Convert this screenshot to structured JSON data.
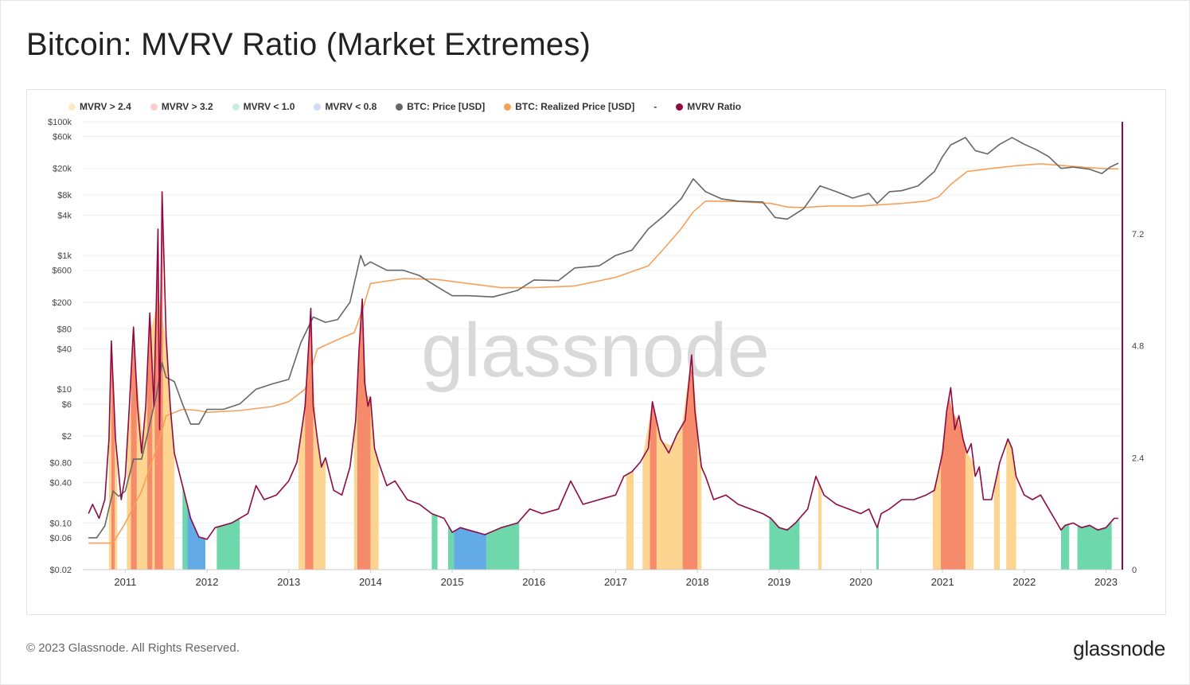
{
  "title": "Bitcoin: MVRV Ratio (Market Extremes)",
  "footer": {
    "copyright": "© 2023 Glassnode. All Rights Reserved.",
    "logo": "glassnode"
  },
  "watermark": "glassnode",
  "legend": {
    "items": [
      {
        "label": "MVRV > 2.4",
        "color": "#fde9c4"
      },
      {
        "label": "MVRV > 3.2",
        "color": "#f9cfc8"
      },
      {
        "label": "MVRV < 1.0",
        "color": "#c8eee2"
      },
      {
        "label": "MVRV < 0.8",
        "color": "#cbdcf7"
      },
      {
        "label": "BTC: Price [USD]",
        "color": "#666666"
      },
      {
        "label": "BTC: Realized Price [USD]",
        "color": "#f7a05a"
      }
    ],
    "separator": "-",
    "last": {
      "label": "MVRV Ratio",
      "color": "#8e0a45"
    }
  },
  "colors": {
    "mvrv": "#8e0a45",
    "price": "#666666",
    "realized": "#f7a05a",
    "zone_gt24": "#fdd38a",
    "zone_gt32": "#f5876a",
    "zone_lt10": "#66d6a8",
    "zone_lt08": "#5aa7e6",
    "watermark": "#d9d9d9"
  },
  "chart_data": {
    "type": "line",
    "title": "Bitcoin: MVRV Ratio (Market Extremes)",
    "x_ticks": [
      "2011",
      "2012",
      "2013",
      "2014",
      "2015",
      "2016",
      "2017",
      "2018",
      "2019",
      "2020",
      "2021",
      "2022",
      "2023"
    ],
    "x_range": [
      2010.48,
      2023.2
    ],
    "left_axis": {
      "scale": "log",
      "range": [
        0.02,
        100000
      ],
      "ticks": [
        {
          "v": 100000,
          "label": "$100k"
        },
        {
          "v": 60000,
          "label": "$60k"
        },
        {
          "v": 20000,
          "label": "$20k"
        },
        {
          "v": 8000,
          "label": "$8k"
        },
        {
          "v": 4000,
          "label": "$4k"
        },
        {
          "v": 1000,
          "label": "$1k"
        },
        {
          "v": 600,
          "label": "$600"
        },
        {
          "v": 200,
          "label": "$200"
        },
        {
          "v": 80,
          "label": "$80"
        },
        {
          "v": 40,
          "label": "$40"
        },
        {
          "v": 10,
          "label": "$10"
        },
        {
          "v": 6,
          "label": "$6"
        },
        {
          "v": 2,
          "label": "$2"
        },
        {
          "v": 0.8,
          "label": "$0.80"
        },
        {
          "v": 0.4,
          "label": "$0.40"
        },
        {
          "v": 0.1,
          "label": "$0.10"
        },
        {
          "v": 0.06,
          "label": "$0.06"
        },
        {
          "v": 0.02,
          "label": "$0.02"
        }
      ]
    },
    "right_axis": {
      "scale": "linear",
      "range": [
        0,
        9.6
      ],
      "ticks": [
        {
          "v": 0,
          "label": "0"
        },
        {
          "v": 2.4,
          "label": "2.4"
        },
        {
          "v": 4.8,
          "label": "4.8"
        },
        {
          "v": 7.2,
          "label": "7.2"
        }
      ]
    },
    "series": [
      {
        "name": "BTC: Price [USD]",
        "axis": "left",
        "x": [
          2010.55,
          2010.65,
          2010.75,
          2010.85,
          2010.92,
          2011.0,
          2011.1,
          2011.2,
          2011.3,
          2011.38,
          2011.45,
          2011.5,
          2011.6,
          2011.7,
          2011.8,
          2011.9,
          2012.0,
          2012.2,
          2012.4,
          2012.6,
          2012.8,
          2013.0,
          2013.15,
          2013.3,
          2013.45,
          2013.6,
          2013.75,
          2013.88,
          2013.93,
          2014.0,
          2014.2,
          2014.4,
          2014.6,
          2014.8,
          2015.0,
          2015.2,
          2015.5,
          2015.8,
          2016.0,
          2016.3,
          2016.5,
          2016.8,
          2017.0,
          2017.2,
          2017.4,
          2017.6,
          2017.8,
          2017.95,
          2018.1,
          2018.3,
          2018.5,
          2018.8,
          2018.95,
          2019.1,
          2019.3,
          2019.5,
          2019.7,
          2019.9,
          2020.1,
          2020.2,
          2020.35,
          2020.5,
          2020.7,
          2020.9,
          2021.0,
          2021.1,
          2021.28,
          2021.4,
          2021.55,
          2021.7,
          2021.85,
          2022.0,
          2022.15,
          2022.3,
          2022.45,
          2022.6,
          2022.8,
          2022.95,
          2023.05,
          2023.15
        ],
        "values": [
          0.06,
          0.06,
          0.09,
          0.3,
          0.25,
          0.3,
          0.9,
          0.9,
          3,
          8,
          25,
          15,
          13,
          6,
          3,
          3,
          5,
          5,
          6,
          10,
          12,
          14,
          50,
          120,
          100,
          110,
          200,
          1000,
          700,
          800,
          600,
          600,
          500,
          350,
          250,
          250,
          240,
          300,
          430,
          420,
          650,
          700,
          1000,
          1200,
          2500,
          4000,
          7000,
          14000,
          9000,
          7000,
          6500,
          6300,
          3700,
          3500,
          5000,
          11000,
          9000,
          7200,
          8500,
          6000,
          9000,
          9300,
          11000,
          18000,
          30000,
          45000,
          58000,
          37000,
          33000,
          46000,
          58000,
          46000,
          38000,
          30000,
          20000,
          21000,
          19500,
          16800,
          21000,
          24000
        ]
      },
      {
        "name": "BTC: Realized Price [USD]",
        "axis": "left",
        "x": [
          2010.55,
          2010.85,
          2011.0,
          2011.2,
          2011.4,
          2011.5,
          2011.7,
          2011.9,
          2012.0,
          2012.4,
          2012.8,
          2013.0,
          2013.2,
          2013.35,
          2013.6,
          2013.8,
          2013.9,
          2014.0,
          2014.4,
          2014.8,
          2015.2,
          2015.6,
          2016.0,
          2016.5,
          2017.0,
          2017.4,
          2017.6,
          2017.8,
          2017.95,
          2018.1,
          2018.5,
          2018.9,
          2019.1,
          2019.3,
          2019.6,
          2020.0,
          2020.5,
          2020.8,
          2020.95,
          2021.1,
          2021.3,
          2021.6,
          2021.9,
          2022.2,
          2022.5,
          2022.8,
          2023.0,
          2023.15
        ],
        "values": [
          0.05,
          0.05,
          0.1,
          0.3,
          1.5,
          4,
          5,
          4.8,
          4.5,
          4.8,
          5.5,
          6.5,
          10,
          40,
          55,
          70,
          150,
          380,
          450,
          440,
          380,
          330,
          330,
          350,
          470,
          700,
          1300,
          2500,
          4500,
          6500,
          6400,
          6000,
          5300,
          5200,
          5500,
          5500,
          6000,
          6500,
          7500,
          11500,
          18000,
          20000,
          22000,
          23500,
          22000,
          20500,
          19800,
          19700
        ]
      },
      {
        "name": "MVRV Ratio",
        "axis": "right",
        "x": [
          2010.55,
          2010.6,
          2010.68,
          2010.75,
          2010.8,
          2010.83,
          2010.88,
          2010.95,
          2011.0,
          2011.05,
          2011.1,
          2011.15,
          2011.2,
          2011.25,
          2011.3,
          2011.35,
          2011.4,
          2011.42,
          2011.45,
          2011.5,
          2011.55,
          2011.6,
          2011.7,
          2011.8,
          2011.9,
          2012.0,
          2012.1,
          2012.3,
          2012.5,
          2012.6,
          2012.7,
          2012.85,
          2013.0,
          2013.1,
          2013.2,
          2013.27,
          2013.3,
          2013.35,
          2013.4,
          2013.45,
          2013.55,
          2013.65,
          2013.75,
          2013.82,
          2013.86,
          2013.9,
          2013.93,
          2013.97,
          2014.0,
          2014.05,
          2014.1,
          2014.2,
          2014.3,
          2014.45,
          2014.6,
          2014.75,
          2014.9,
          2015.0,
          2015.1,
          2015.2,
          2015.4,
          2015.6,
          2015.8,
          2015.95,
          2016.1,
          2016.3,
          2016.45,
          2016.6,
          2016.8,
          2017.0,
          2017.1,
          2017.2,
          2017.3,
          2017.4,
          2017.45,
          2017.55,
          2017.65,
          2017.75,
          2017.85,
          2017.93,
          2017.97,
          2018.05,
          2018.1,
          2018.2,
          2018.35,
          2018.5,
          2018.65,
          2018.8,
          2018.9,
          2019.0,
          2019.1,
          2019.2,
          2019.35,
          2019.45,
          2019.55,
          2019.7,
          2019.85,
          2020.0,
          2020.1,
          2020.15,
          2020.2,
          2020.25,
          2020.35,
          2020.5,
          2020.65,
          2020.8,
          2020.9,
          2021.0,
          2021.05,
          2021.1,
          2021.15,
          2021.2,
          2021.25,
          2021.3,
          2021.35,
          2021.4,
          2021.45,
          2021.5,
          2021.6,
          2021.7,
          2021.8,
          2021.85,
          2021.9,
          2022.0,
          2022.1,
          2022.2,
          2022.3,
          2022.4,
          2022.45,
          2022.5,
          2022.6,
          2022.7,
          2022.8,
          2022.9,
          2023.0,
          2023.1,
          2023.15
        ],
        "values": [
          1.2,
          1.4,
          1.1,
          1.5,
          2.8,
          4.9,
          2.8,
          1.5,
          2.0,
          3.5,
          5.2,
          3.5,
          2.5,
          3.5,
          5.5,
          3.5,
          7.3,
          3.0,
          8.1,
          5.0,
          3.5,
          2.5,
          1.8,
          1.1,
          0.7,
          0.65,
          0.9,
          1.0,
          1.2,
          1.8,
          1.5,
          1.6,
          1.9,
          2.3,
          3.5,
          5.6,
          3.5,
          2.8,
          2.2,
          2.4,
          1.7,
          1.6,
          2.2,
          3.2,
          4.7,
          5.8,
          4.0,
          3.5,
          3.7,
          2.6,
          2.3,
          1.8,
          1.9,
          1.5,
          1.4,
          1.2,
          1.1,
          0.8,
          0.9,
          0.85,
          0.75,
          0.9,
          1.0,
          1.3,
          1.2,
          1.3,
          1.9,
          1.4,
          1.5,
          1.6,
          2.0,
          2.1,
          2.3,
          2.6,
          3.6,
          2.8,
          2.5,
          2.9,
          3.2,
          4.6,
          3.4,
          2.2,
          2.0,
          1.5,
          1.6,
          1.4,
          1.3,
          1.2,
          1.1,
          0.9,
          0.85,
          1.0,
          1.3,
          2.0,
          1.6,
          1.4,
          1.3,
          1.2,
          1.3,
          1.1,
          0.9,
          1.2,
          1.3,
          1.5,
          1.5,
          1.6,
          1.7,
          2.5,
          3.4,
          3.9,
          3.0,
          3.3,
          2.8,
          2.5,
          2.7,
          2.0,
          2.2,
          1.5,
          1.5,
          2.3,
          2.8,
          2.6,
          2.0,
          1.6,
          1.5,
          1.6,
          1.3,
          1.0,
          0.85,
          0.95,
          1.0,
          0.9,
          0.95,
          0.85,
          0.9,
          1.1,
          1.1
        ]
      }
    ],
    "zones": [
      {
        "type": "gt24",
        "from": 2010.8,
        "to": 2010.9
      },
      {
        "type": "gt32",
        "from": 2010.83,
        "to": 2010.87
      },
      {
        "type": "gt24",
        "from": 2011.02,
        "to": 2011.6
      },
      {
        "type": "gt32",
        "from": 2011.07,
        "to": 2011.14
      },
      {
        "type": "gt32",
        "from": 2011.27,
        "to": 2011.33
      },
      {
        "type": "gt32",
        "from": 2011.36,
        "to": 2011.46
      },
      {
        "type": "lt10",
        "from": 2011.7,
        "to": 2011.76
      },
      {
        "type": "lt08",
        "from": 2011.76,
        "to": 2011.98
      },
      {
        "type": "lt10",
        "from": 2012.12,
        "to": 2012.4
      },
      {
        "type": "gt24",
        "from": 2013.12,
        "to": 2013.45
      },
      {
        "type": "gt32",
        "from": 2013.2,
        "to": 2013.3
      },
      {
        "type": "gt24",
        "from": 2013.8,
        "to": 2014.1
      },
      {
        "type": "gt32",
        "from": 2013.84,
        "to": 2014.0
      },
      {
        "type": "lt10",
        "from": 2014.75,
        "to": 2014.82
      },
      {
        "type": "lt10",
        "from": 2014.95,
        "to": 2015.02
      },
      {
        "type": "lt08",
        "from": 2015.02,
        "to": 2015.42
      },
      {
        "type": "lt10",
        "from": 2015.42,
        "to": 2015.82
      },
      {
        "type": "gt24",
        "from": 2017.13,
        "to": 2017.22
      },
      {
        "type": "gt24",
        "from": 2017.33,
        "to": 2018.05
      },
      {
        "type": "gt32",
        "from": 2017.42,
        "to": 2017.5
      },
      {
        "type": "gt32",
        "from": 2017.82,
        "to": 2018.0
      },
      {
        "type": "lt10",
        "from": 2018.88,
        "to": 2019.25
      },
      {
        "type": "gt24",
        "from": 2019.48,
        "to": 2019.52
      },
      {
        "type": "lt10",
        "from": 2020.19,
        "to": 2020.22
      },
      {
        "type": "gt24",
        "from": 2020.88,
        "to": 2021.38
      },
      {
        "type": "gt32",
        "from": 2020.98,
        "to": 2021.28
      },
      {
        "type": "gt24",
        "from": 2021.63,
        "to": 2021.7
      },
      {
        "type": "gt24",
        "from": 2021.78,
        "to": 2021.9
      },
      {
        "type": "lt10",
        "from": 2022.45,
        "to": 2022.55
      },
      {
        "type": "lt10",
        "from": 2022.65,
        "to": 2023.07
      }
    ]
  }
}
